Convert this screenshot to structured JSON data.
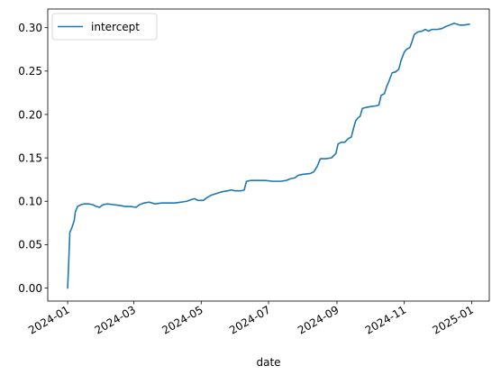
{
  "chart_data": {
    "type": "line",
    "title": "",
    "xlabel": "date",
    "ylabel": "",
    "xlim": [
      "2023-12-14",
      "2025-01-17"
    ],
    "ylim": [
      -0.015,
      0.3215
    ],
    "grid": false,
    "legend": {
      "placement": "top-left",
      "entries": [
        "intercept"
      ]
    },
    "x_ticks": [
      "2024-01",
      "2024-03",
      "2024-05",
      "2024-07",
      "2024-09",
      "2024-11",
      "2025-01"
    ],
    "y_ticks": [
      "0.00",
      "0.05",
      "0.10",
      "0.15",
      "0.20",
      "0.25",
      "0.30"
    ],
    "series": [
      {
        "name": "intercept",
        "color": "#1f77b4",
        "points": [
          [
            "2024-01-01",
            0.0
          ],
          [
            "2024-01-02",
            0.03
          ],
          [
            "2024-01-03",
            0.064
          ],
          [
            "2024-01-05",
            0.07
          ],
          [
            "2024-01-07",
            0.078
          ],
          [
            "2024-01-08",
            0.088
          ],
          [
            "2024-01-10",
            0.094
          ],
          [
            "2024-01-13",
            0.096
          ],
          [
            "2024-01-16",
            0.097
          ],
          [
            "2024-01-20",
            0.097
          ],
          [
            "2024-01-24",
            0.096
          ],
          [
            "2024-01-27",
            0.094
          ],
          [
            "2024-01-30",
            0.093
          ],
          [
            "2024-02-02",
            0.096
          ],
          [
            "2024-02-06",
            0.097
          ],
          [
            "2024-02-12",
            0.096
          ],
          [
            "2024-02-18",
            0.095
          ],
          [
            "2024-02-22",
            0.094
          ],
          [
            "2024-02-27",
            0.094
          ],
          [
            "2024-03-03",
            0.093
          ],
          [
            "2024-03-06",
            0.096
          ],
          [
            "2024-03-10",
            0.098
          ],
          [
            "2024-03-15",
            0.099
          ],
          [
            "2024-03-20",
            0.097
          ],
          [
            "2024-03-26",
            0.098
          ],
          [
            "2024-04-01",
            0.098
          ],
          [
            "2024-04-07",
            0.098
          ],
          [
            "2024-04-13",
            0.099
          ],
          [
            "2024-04-18",
            0.1
          ],
          [
            "2024-04-22",
            0.102
          ],
          [
            "2024-04-25",
            0.103
          ],
          [
            "2024-04-28",
            0.101
          ],
          [
            "2024-05-03",
            0.101
          ],
          [
            "2024-05-06",
            0.104
          ],
          [
            "2024-05-10",
            0.107
          ],
          [
            "2024-05-15",
            0.109
          ],
          [
            "2024-05-20",
            0.111
          ],
          [
            "2024-05-25",
            0.112
          ],
          [
            "2024-05-28",
            0.113
          ],
          [
            "2024-06-01",
            0.112
          ],
          [
            "2024-06-06",
            0.112
          ],
          [
            "2024-06-09",
            0.113
          ],
          [
            "2024-06-11",
            0.123
          ],
          [
            "2024-06-15",
            0.124
          ],
          [
            "2024-06-20",
            0.124
          ],
          [
            "2024-06-28",
            0.124
          ],
          [
            "2024-07-05",
            0.123
          ],
          [
            "2024-07-12",
            0.123
          ],
          [
            "2024-07-17",
            0.124
          ],
          [
            "2024-07-21",
            0.126
          ],
          [
            "2024-07-25",
            0.127
          ],
          [
            "2024-07-28",
            0.13
          ],
          [
            "2024-08-01",
            0.131
          ],
          [
            "2024-08-08",
            0.132
          ],
          [
            "2024-08-11",
            0.134
          ],
          [
            "2024-08-14",
            0.14
          ],
          [
            "2024-08-17",
            0.149
          ],
          [
            "2024-08-22",
            0.149
          ],
          [
            "2024-08-27",
            0.15
          ],
          [
            "2024-08-31",
            0.155
          ],
          [
            "2024-09-02",
            0.166
          ],
          [
            "2024-09-05",
            0.168
          ],
          [
            "2024-09-08",
            0.168
          ],
          [
            "2024-09-11",
            0.172
          ],
          [
            "2024-09-14",
            0.174
          ],
          [
            "2024-09-16",
            0.184
          ],
          [
            "2024-09-18",
            0.193
          ],
          [
            "2024-09-20",
            0.196
          ],
          [
            "2024-09-22",
            0.198
          ],
          [
            "2024-09-24",
            0.207
          ],
          [
            "2024-09-27",
            0.208
          ],
          [
            "2024-10-01",
            0.209
          ],
          [
            "2024-10-07",
            0.21
          ],
          [
            "2024-10-09",
            0.211
          ],
          [
            "2024-10-11",
            0.222
          ],
          [
            "2024-10-14",
            0.224
          ],
          [
            "2024-10-16",
            0.232
          ],
          [
            "2024-10-18",
            0.238
          ],
          [
            "2024-10-21",
            0.248
          ],
          [
            "2024-10-24",
            0.249
          ],
          [
            "2024-10-27",
            0.252
          ],
          [
            "2024-10-29",
            0.262
          ],
          [
            "2024-11-01",
            0.272
          ],
          [
            "2024-11-03",
            0.275
          ],
          [
            "2024-11-06",
            0.277
          ],
          [
            "2024-11-08",
            0.284
          ],
          [
            "2024-11-10",
            0.292
          ],
          [
            "2024-11-13",
            0.295
          ],
          [
            "2024-11-17",
            0.296
          ],
          [
            "2024-11-20",
            0.298
          ],
          [
            "2024-11-23",
            0.296
          ],
          [
            "2024-11-26",
            0.298
          ],
          [
            "2024-12-01",
            0.298
          ],
          [
            "2024-12-05",
            0.299
          ],
          [
            "2024-12-08",
            0.301
          ],
          [
            "2024-12-12",
            0.303
          ],
          [
            "2024-12-16",
            0.305
          ],
          [
            "2024-12-19",
            0.304
          ],
          [
            "2024-12-21",
            0.303
          ],
          [
            "2024-12-25",
            0.303
          ],
          [
            "2024-12-30",
            0.304
          ]
        ]
      }
    ]
  }
}
